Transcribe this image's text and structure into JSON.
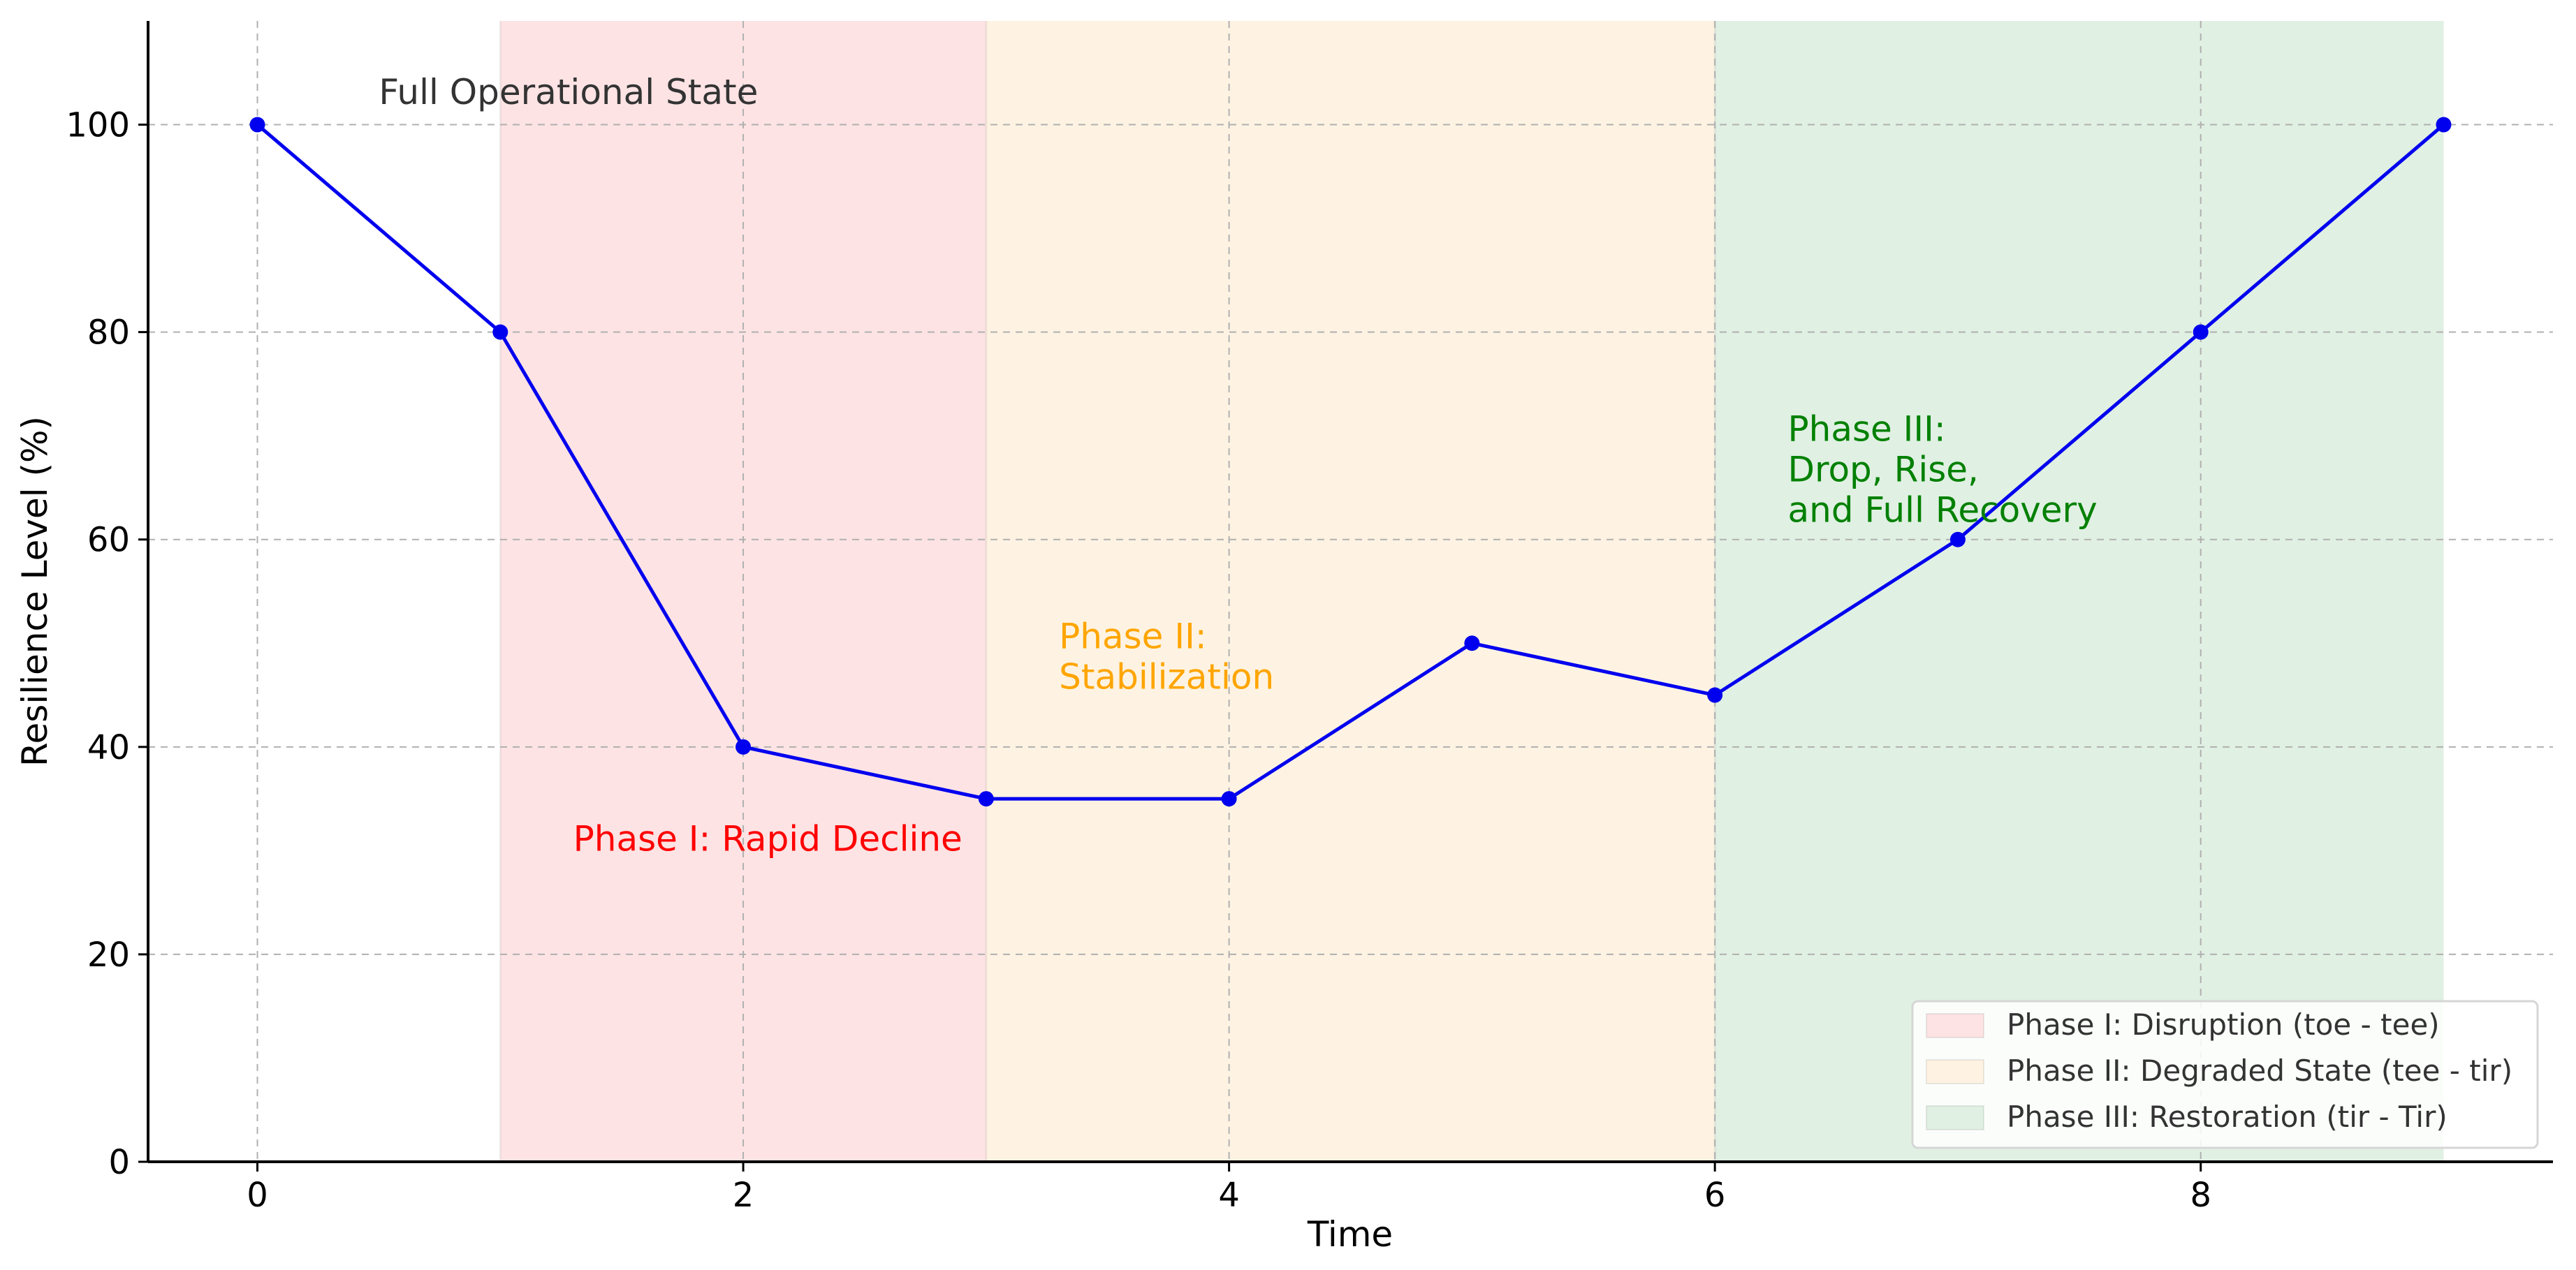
{
  "chart_data": {
    "type": "line",
    "title": "",
    "xlabel": "Time",
    "ylabel": "Resilience Level (%)",
    "xlim": [
      -0.45,
      9.45
    ],
    "ylim": [
      0,
      110
    ],
    "xticks": [
      0,
      2,
      4,
      6,
      8
    ],
    "yticks": [
      0,
      20,
      40,
      60,
      80,
      100
    ],
    "grid": true,
    "legend_position": "bottom-right",
    "series": [
      {
        "x": [
          0,
          1,
          2,
          3,
          4,
          5,
          6,
          7,
          8,
          9
        ],
        "values": [
          100,
          80,
          40,
          35,
          35,
          50,
          45,
          60,
          80,
          100
        ],
        "color": "#0000ee"
      }
    ],
    "phases": [
      {
        "label": "Phase I: Disruption (toe - tee)",
        "x_start": 1,
        "x_end": 3,
        "color": "#fde3e4"
      },
      {
        "label": "Phase II: Degraded State (tee - tir)",
        "x_start": 3,
        "x_end": 6,
        "color": "#fef3e2"
      },
      {
        "label": "Phase III: Restoration (tir - Tir)",
        "x_start": 6,
        "x_end": 9,
        "color": "#e0f0e3"
      }
    ],
    "annotations": [
      {
        "lines": [
          "Full Operational State"
        ],
        "x": 0.5,
        "y": 102,
        "color": "#333333"
      },
      {
        "lines": [
          "Phase I: Rapid Decline"
        ],
        "x": 1.3,
        "y": 30,
        "color": "#ff0000"
      },
      {
        "lines": [
          "Phase II:",
          "Stabilization"
        ],
        "x": 3.3,
        "y": 49.5,
        "color": "#ffa500"
      },
      {
        "lines": [
          "Phase III:",
          "Drop, Rise,",
          "and Full Recovery"
        ],
        "x": 6.3,
        "y": 69.5,
        "color": "#008000"
      }
    ]
  }
}
